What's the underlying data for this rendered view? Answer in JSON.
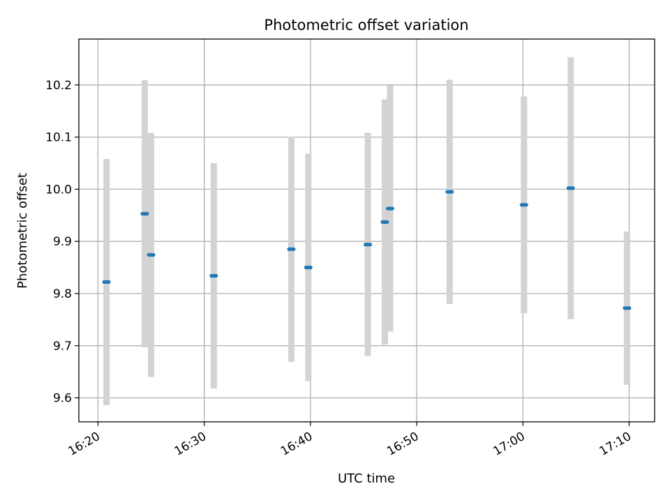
{
  "chart_data": {
    "type": "scatter",
    "title": "Photometric offset variation",
    "xlabel": "UTC time",
    "ylabel": "Photometric offset",
    "x_ticks": [
      "16:20",
      "16:30",
      "16:40",
      "16:50",
      "17:00",
      "17:10"
    ],
    "y_ticks": [
      "9.6",
      "9.7",
      "9.8",
      "9.9",
      "10.0",
      "10.1",
      "10.2"
    ],
    "xlim": [
      "16:18.2",
      "17:12.4"
    ],
    "ylim": [
      9.554,
      10.288
    ],
    "grid": true,
    "colors": {
      "point": "#1f77b4",
      "errorbar": "#d3d3d3",
      "grid": "#b0b0b0"
    },
    "points": [
      {
        "x": "16:20.8",
        "y": 9.822,
        "yerr": 0.236
      },
      {
        "x": "16:24.4",
        "y": 9.953,
        "yerr": 0.256
      },
      {
        "x": "16:25.0",
        "y": 9.874,
        "yerr": 0.234
      },
      {
        "x": "16:30.9",
        "y": 9.834,
        "yerr": 0.216
      },
      {
        "x": "16:38.2",
        "y": 9.885,
        "yerr": 0.216
      },
      {
        "x": "16:39.8",
        "y": 9.85,
        "yerr": 0.218
      },
      {
        "x": "16:45.4",
        "y": 9.894,
        "yerr": 0.214
      },
      {
        "x": "16:47.0",
        "y": 9.937,
        "yerr": 0.235
      },
      {
        "x": "16:47.5",
        "y": 9.963,
        "yerr": 0.236
      },
      {
        "x": "16:53.1",
        "y": 9.995,
        "yerr": 0.215
      },
      {
        "x": "17:00.1",
        "y": 9.97,
        "yerr": 0.208
      },
      {
        "x": "17:04.5",
        "y": 10.002,
        "yerr": 0.251
      },
      {
        "x": "17:09.8",
        "y": 9.772,
        "yerr": 0.147
      }
    ]
  }
}
